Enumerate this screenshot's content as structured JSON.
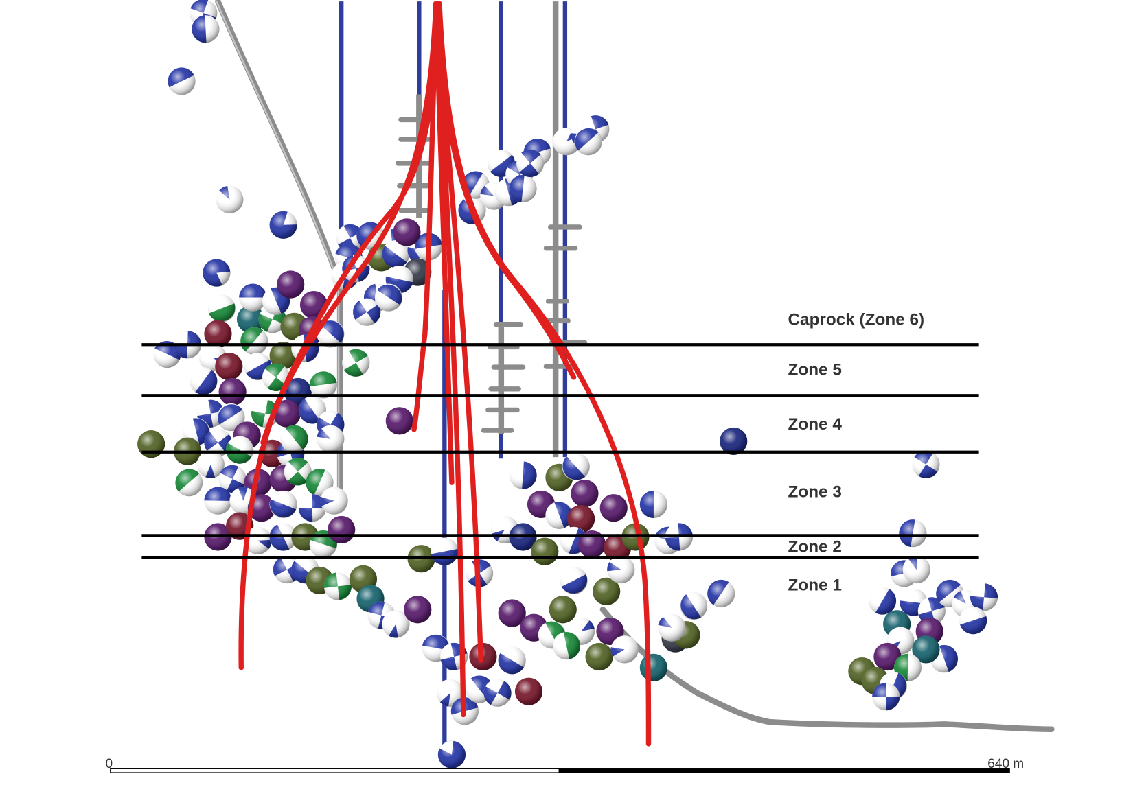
{
  "zones": [
    {
      "label": "Caprock (Zone 6)"
    },
    {
      "label": "Zone 5"
    },
    {
      "label": "Zone 4"
    },
    {
      "label": "Zone 3"
    },
    {
      "label": "Zone 2"
    },
    {
      "label": "Zone 1"
    }
  ],
  "scale_bar": {
    "start_label": "0",
    "end_label": "640 m"
  },
  "colors": {
    "injection_wells": "#e0201f",
    "blue_wells": "#2e3c9c",
    "gray_wells": "#8c8c8c",
    "zone_boundaries": "#000000",
    "beachball_blue": "#2a3aa8",
    "beachball_green": "#1d8a3c",
    "beachball_purple": "#5b1f6e",
    "beachball_maroon": "#7a1c30",
    "beachball_olive": "#56662a",
    "beachball_teal": "#1c6670",
    "beachball_navy": "#1e2a80",
    "beachball_slate": "#3a3d4c"
  }
}
